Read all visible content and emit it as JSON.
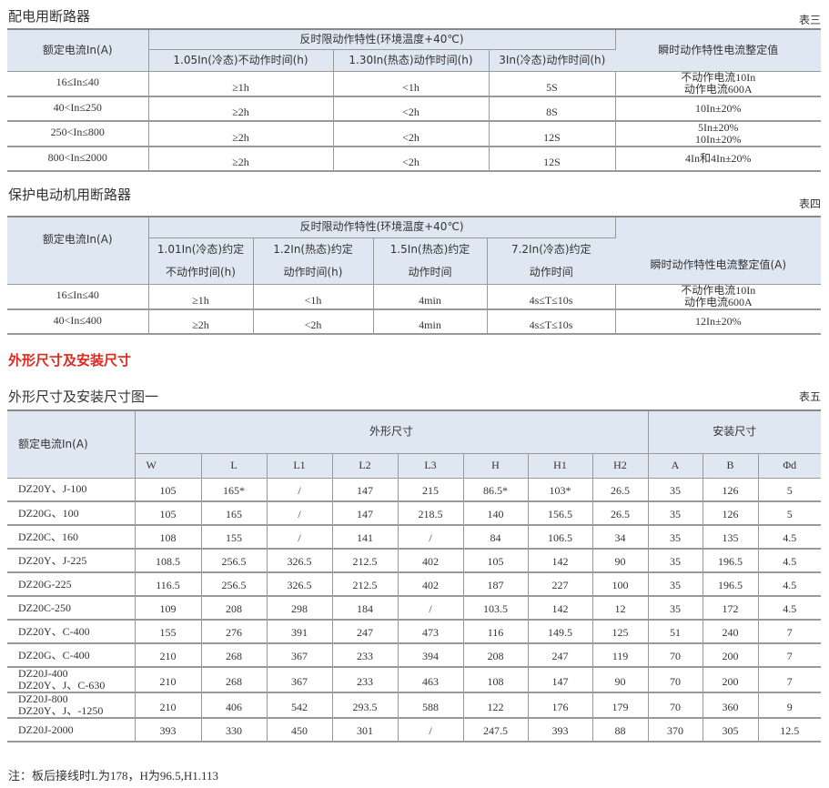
{
  "table3": {
    "section_title": "配电用断路器",
    "table_no": "表三",
    "headers": {
      "rated_current": "额定电流In(A)",
      "inverse_time": "反时限动作特性(环境温度+40℃)",
      "instant": "瞬时动作特性电流整定值",
      "sub": [
        "1.05In(冷态)不动作时间(h)",
        "1.30In(热态)动作时间(h)",
        "3In(冷态)动作时间(h)"
      ]
    },
    "rows": [
      [
        "16≤In≤40",
        "≥1h",
        "<1h",
        "5S",
        "不动作电流10In\n动作电流600A"
      ],
      [
        "40<In≤250",
        "≥2h",
        "<2h",
        "8S",
        "10In±20%"
      ],
      [
        "250<In≤800",
        "≥2h",
        "<2h",
        "12S",
        "5In±20%\n10In±20%"
      ],
      [
        "800<In≤2000",
        "≥2h",
        "<2h",
        "12S",
        "4In和4In±20%"
      ]
    ]
  },
  "table4": {
    "section_title": "保护电动机用断路器",
    "table_no": "表四",
    "headers": {
      "rated_current": "额定电流In(A)",
      "inverse_time": "反时限动作特性(环境温度+40℃)",
      "instant": "瞬时动作特性电流整定值(A)",
      "sub": [
        "1.01In(冷态)约定\n不动作时间(h)",
        "1.2In(热态)约定\n动作时间(h)",
        "1.5In(热态)约定\n动作时间",
        "7.2In(冷态)约定\n动作时间"
      ]
    },
    "rows": [
      [
        "16≤In≤40",
        "≥1h",
        "<1h",
        "4min",
        "4s≤T≤10s",
        "不动作电流10In\n动作电流600A"
      ],
      [
        "40<In≤400",
        "≥2h",
        "<2h",
        "4min",
        "4s≤T≤10s",
        "12In±20%"
      ]
    ]
  },
  "dimensions_heading": "外形尺寸及安装尺寸",
  "table5": {
    "section_title": "外形尺寸及安装尺寸图一",
    "table_no": "表五",
    "headers": {
      "rated_current": "额定电流In(A)",
      "outline": "外形尺寸",
      "mounting": "安装尺寸",
      "sub": [
        "W",
        "L",
        "L1",
        "L2",
        "L3",
        "H",
        "H1",
        "H2",
        "A",
        "B",
        "Φd"
      ]
    },
    "rows": [
      [
        "DZ20Y、J-100",
        "105",
        "165*",
        "/",
        "147",
        "215",
        "86.5*",
        "103*",
        "26.5",
        "35",
        "126",
        "5"
      ],
      [
        "DZ20G、100",
        "105",
        "165",
        "/",
        "147",
        "218.5",
        "140",
        "156.5",
        "26.5",
        "35",
        "126",
        "5"
      ],
      [
        "DZ20C、160",
        "108",
        "155",
        "/",
        "141",
        "/",
        "84",
        "106.5",
        "34",
        "35",
        "135",
        "4.5"
      ],
      [
        "DZ20Y、J-225",
        "108.5",
        "256.5",
        "326.5",
        "212.5",
        "402",
        "105",
        "142",
        "90",
        "35",
        "196.5",
        "4.5"
      ],
      [
        "DZ20G-225",
        "116.5",
        "256.5",
        "326.5",
        "212.5",
        "402",
        "187",
        "227",
        "100",
        "35",
        "196.5",
        "4.5"
      ],
      [
        "DZ20C-250",
        "109",
        "208",
        "298",
        "184",
        "/",
        "103.5",
        "142",
        "12",
        "35",
        "172",
        "4.5"
      ],
      [
        "DZ20Y、C-400",
        "155",
        "276",
        "391",
        "247",
        "473",
        "116",
        "149.5",
        "125",
        "51",
        "240",
        "7"
      ],
      [
        "DZ20G、C-400",
        "210",
        "268",
        "367",
        "233",
        "394",
        "208",
        "247",
        "119",
        "70",
        "200",
        "7"
      ],
      [
        "DZ20J-400\nDZ20Y、J、C-630",
        "210",
        "268",
        "367",
        "233",
        "463",
        "108",
        "147",
        "90",
        "70",
        "200",
        "7"
      ],
      [
        "DZ20J-800\nDZ20Y、J、-1250",
        "210",
        "406",
        "542",
        "293.5",
        "588",
        "122",
        "176",
        "179",
        "70",
        "360",
        "9"
      ],
      [
        "DZ20J-2000",
        "393",
        "330",
        "450",
        "301",
        "/",
        "247.5",
        "393",
        "88",
        "370",
        "305",
        "12.5"
      ]
    ],
    "note": "注：板后接线时L为178，H为96.5,H1.113"
  },
  "colors": {
    "header_bg": "#dfe7f2",
    "heading_red": "#e0281e",
    "border": "#9a9a9a"
  }
}
